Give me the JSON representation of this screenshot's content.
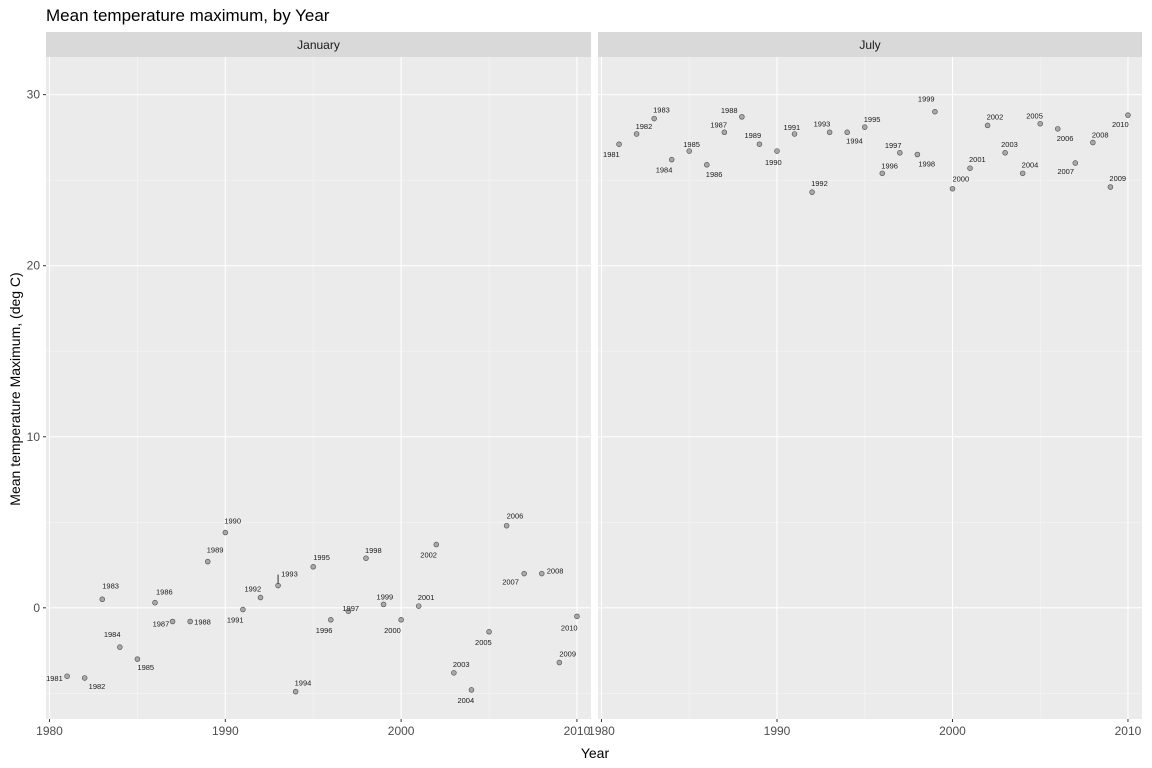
{
  "chart_data": {
    "type": "scatter",
    "title": "Mean temperature maximum, by Year",
    "xlabel": "Year",
    "ylabel": "Mean temperature Maximum, (deg C)",
    "xlim": [
      1979.8,
      2010.8
    ],
    "ylim": [
      -6.5,
      32.2
    ],
    "x_ticks": [
      1980,
      1990,
      2000,
      2010
    ],
    "y_ticks": [
      0,
      10,
      20,
      30
    ],
    "grid": true,
    "point_color": "#a9a9a9",
    "point_stroke": "#555555",
    "panel_bg": "#ebebeb",
    "strip_bg": "#d9d9d9",
    "panels": [
      {
        "strip": "January",
        "points": [
          {
            "x": 1981,
            "y": -4.0,
            "label": "1981"
          },
          {
            "x": 1982,
            "y": -4.1,
            "label": "1982"
          },
          {
            "x": 1983,
            "y": 0.5,
            "label": "1983"
          },
          {
            "x": 1984,
            "y": -2.3,
            "label": "1984"
          },
          {
            "x": 1985,
            "y": -3.0,
            "label": "1985"
          },
          {
            "x": 1986,
            "y": 0.3,
            "label": "1986"
          },
          {
            "x": 1987,
            "y": -0.8,
            "label": "1987"
          },
          {
            "x": 1988,
            "y": -0.8,
            "label": "1988"
          },
          {
            "x": 1989,
            "y": 2.7,
            "label": "1989"
          },
          {
            "x": 1990,
            "y": 4.4,
            "label": "1990"
          },
          {
            "x": 1991,
            "y": -0.1,
            "label": "1991"
          },
          {
            "x": 1992,
            "y": 0.6,
            "label": "1992"
          },
          {
            "x": 1993,
            "y": 1.3,
            "label": "1993"
          },
          {
            "x": 1994,
            "y": -4.9,
            "label": "1994"
          },
          {
            "x": 1995,
            "y": 2.4,
            "label": "1995"
          },
          {
            "x": 1996,
            "y": -0.7,
            "label": "1996"
          },
          {
            "x": 1997,
            "y": -0.2,
            "label": "1997"
          },
          {
            "x": 1998,
            "y": 2.9,
            "label": "1998"
          },
          {
            "x": 1999,
            "y": 0.2,
            "label": "1999"
          },
          {
            "x": 2000,
            "y": -0.7,
            "label": "2000"
          },
          {
            "x": 2001,
            "y": 0.1,
            "label": "2001"
          },
          {
            "x": 2002,
            "y": 3.7,
            "label": "2002"
          },
          {
            "x": 2003,
            "y": -3.8,
            "label": "2003"
          },
          {
            "x": 2004,
            "y": -4.8,
            "label": "2004"
          },
          {
            "x": 2005,
            "y": -1.4,
            "label": "2005"
          },
          {
            "x": 2006,
            "y": 4.8,
            "label": "2006"
          },
          {
            "x": 2007,
            "y": 2.0,
            "label": "2007"
          },
          {
            "x": 2008,
            "y": 2.0,
            "label": "2008"
          },
          {
            "x": 2009,
            "y": -3.2,
            "label": "2009"
          },
          {
            "x": 2010,
            "y": -0.5,
            "label": "2010"
          }
        ]
      },
      {
        "strip": "July",
        "points": [
          {
            "x": 1981,
            "y": 27.1,
            "label": "1981"
          },
          {
            "x": 1982,
            "y": 27.7,
            "label": "1982"
          },
          {
            "x": 1983,
            "y": 28.6,
            "label": "1983"
          },
          {
            "x": 1984,
            "y": 26.2,
            "label": "1984"
          },
          {
            "x": 1985,
            "y": 26.7,
            "label": "1985"
          },
          {
            "x": 1986,
            "y": 25.9,
            "label": "1986"
          },
          {
            "x": 1987,
            "y": 27.8,
            "label": "1987"
          },
          {
            "x": 1988,
            "y": 28.7,
            "label": "1988"
          },
          {
            "x": 1989,
            "y": 27.1,
            "label": "1989"
          },
          {
            "x": 1990,
            "y": 26.7,
            "label": "1990"
          },
          {
            "x": 1991,
            "y": 27.7,
            "label": "1991"
          },
          {
            "x": 1992,
            "y": 24.3,
            "label": "1992"
          },
          {
            "x": 1993,
            "y": 27.8,
            "label": "1993"
          },
          {
            "x": 1994,
            "y": 27.8,
            "label": "1994"
          },
          {
            "x": 1995,
            "y": 28.1,
            "label": "1995"
          },
          {
            "x": 1996,
            "y": 25.4,
            "label": "1996"
          },
          {
            "x": 1997,
            "y": 26.6,
            "label": "1997"
          },
          {
            "x": 1998,
            "y": 26.5,
            "label": "1998"
          },
          {
            "x": 1999,
            "y": 29.0,
            "label": "1999"
          },
          {
            "x": 2000,
            "y": 24.5,
            "label": "2000"
          },
          {
            "x": 2001,
            "y": 25.7,
            "label": "2001"
          },
          {
            "x": 2002,
            "y": 28.2,
            "label": "2002"
          },
          {
            "x": 2003,
            "y": 26.6,
            "label": "2003"
          },
          {
            "x": 2004,
            "y": 25.4,
            "label": "2004"
          },
          {
            "x": 2005,
            "y": 28.3,
            "label": "2005"
          },
          {
            "x": 2006,
            "y": 28.0,
            "label": "2006"
          },
          {
            "x": 2007,
            "y": 26.0,
            "label": "2007"
          },
          {
            "x": 2008,
            "y": 27.2,
            "label": "2008"
          },
          {
            "x": 2009,
            "y": 24.6,
            "label": "2009"
          },
          {
            "x": 2010,
            "y": 28.8,
            "label": "2010"
          }
        ]
      }
    ]
  }
}
